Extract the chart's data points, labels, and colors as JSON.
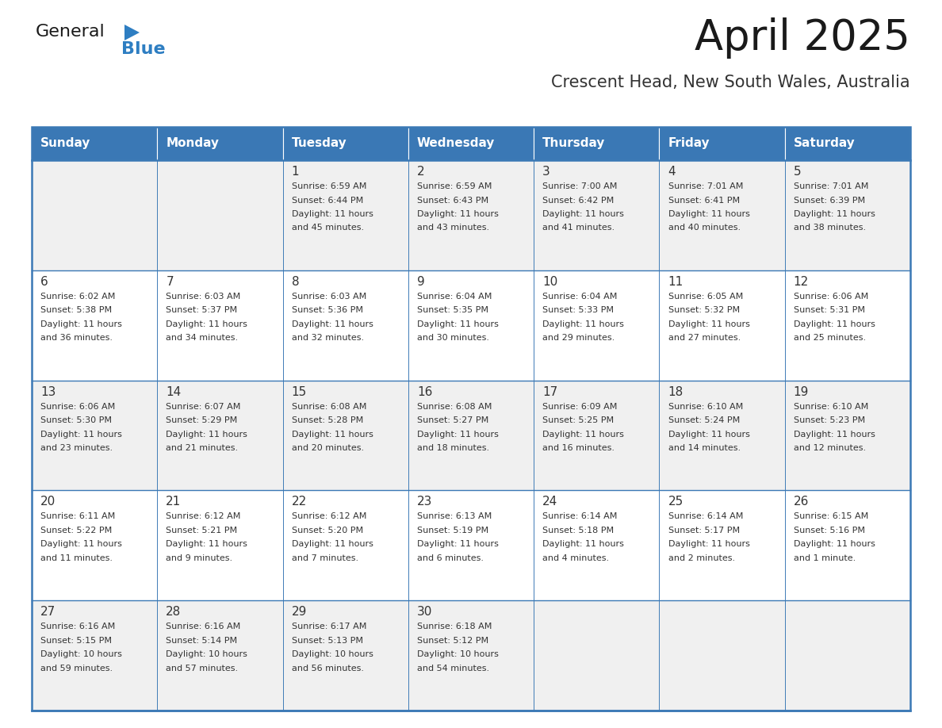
{
  "title": "April 2025",
  "subtitle": "Crescent Head, New South Wales, Australia",
  "days_of_week": [
    "Sunday",
    "Monday",
    "Tuesday",
    "Wednesday",
    "Thursday",
    "Friday",
    "Saturday"
  ],
  "header_bg": "#3a78b5",
  "header_text": "#ffffff",
  "cell_bg_light": "#f0f0f0",
  "cell_bg_white": "#ffffff",
  "border_color": "#3a78b5",
  "text_color": "#333333",
  "title_color": "#1a1a1a",
  "subtitle_color": "#333333",
  "calendar_data": [
    [
      {
        "day": "",
        "lines": []
      },
      {
        "day": "",
        "lines": []
      },
      {
        "day": "1",
        "lines": [
          "Sunrise: 6:59 AM",
          "Sunset: 6:44 PM",
          "Daylight: 11 hours",
          "and 45 minutes."
        ]
      },
      {
        "day": "2",
        "lines": [
          "Sunrise: 6:59 AM",
          "Sunset: 6:43 PM",
          "Daylight: 11 hours",
          "and 43 minutes."
        ]
      },
      {
        "day": "3",
        "lines": [
          "Sunrise: 7:00 AM",
          "Sunset: 6:42 PM",
          "Daylight: 11 hours",
          "and 41 minutes."
        ]
      },
      {
        "day": "4",
        "lines": [
          "Sunrise: 7:01 AM",
          "Sunset: 6:41 PM",
          "Daylight: 11 hours",
          "and 40 minutes."
        ]
      },
      {
        "day": "5",
        "lines": [
          "Sunrise: 7:01 AM",
          "Sunset: 6:39 PM",
          "Daylight: 11 hours",
          "and 38 minutes."
        ]
      }
    ],
    [
      {
        "day": "6",
        "lines": [
          "Sunrise: 6:02 AM",
          "Sunset: 5:38 PM",
          "Daylight: 11 hours",
          "and 36 minutes."
        ]
      },
      {
        "day": "7",
        "lines": [
          "Sunrise: 6:03 AM",
          "Sunset: 5:37 PM",
          "Daylight: 11 hours",
          "and 34 minutes."
        ]
      },
      {
        "day": "8",
        "lines": [
          "Sunrise: 6:03 AM",
          "Sunset: 5:36 PM",
          "Daylight: 11 hours",
          "and 32 minutes."
        ]
      },
      {
        "day": "9",
        "lines": [
          "Sunrise: 6:04 AM",
          "Sunset: 5:35 PM",
          "Daylight: 11 hours",
          "and 30 minutes."
        ]
      },
      {
        "day": "10",
        "lines": [
          "Sunrise: 6:04 AM",
          "Sunset: 5:33 PM",
          "Daylight: 11 hours",
          "and 29 minutes."
        ]
      },
      {
        "day": "11",
        "lines": [
          "Sunrise: 6:05 AM",
          "Sunset: 5:32 PM",
          "Daylight: 11 hours",
          "and 27 minutes."
        ]
      },
      {
        "day": "12",
        "lines": [
          "Sunrise: 6:06 AM",
          "Sunset: 5:31 PM",
          "Daylight: 11 hours",
          "and 25 minutes."
        ]
      }
    ],
    [
      {
        "day": "13",
        "lines": [
          "Sunrise: 6:06 AM",
          "Sunset: 5:30 PM",
          "Daylight: 11 hours",
          "and 23 minutes."
        ]
      },
      {
        "day": "14",
        "lines": [
          "Sunrise: 6:07 AM",
          "Sunset: 5:29 PM",
          "Daylight: 11 hours",
          "and 21 minutes."
        ]
      },
      {
        "day": "15",
        "lines": [
          "Sunrise: 6:08 AM",
          "Sunset: 5:28 PM",
          "Daylight: 11 hours",
          "and 20 minutes."
        ]
      },
      {
        "day": "16",
        "lines": [
          "Sunrise: 6:08 AM",
          "Sunset: 5:27 PM",
          "Daylight: 11 hours",
          "and 18 minutes."
        ]
      },
      {
        "day": "17",
        "lines": [
          "Sunrise: 6:09 AM",
          "Sunset: 5:25 PM",
          "Daylight: 11 hours",
          "and 16 minutes."
        ]
      },
      {
        "day": "18",
        "lines": [
          "Sunrise: 6:10 AM",
          "Sunset: 5:24 PM",
          "Daylight: 11 hours",
          "and 14 minutes."
        ]
      },
      {
        "day": "19",
        "lines": [
          "Sunrise: 6:10 AM",
          "Sunset: 5:23 PM",
          "Daylight: 11 hours",
          "and 12 minutes."
        ]
      }
    ],
    [
      {
        "day": "20",
        "lines": [
          "Sunrise: 6:11 AM",
          "Sunset: 5:22 PM",
          "Daylight: 11 hours",
          "and 11 minutes."
        ]
      },
      {
        "day": "21",
        "lines": [
          "Sunrise: 6:12 AM",
          "Sunset: 5:21 PM",
          "Daylight: 11 hours",
          "and 9 minutes."
        ]
      },
      {
        "day": "22",
        "lines": [
          "Sunrise: 6:12 AM",
          "Sunset: 5:20 PM",
          "Daylight: 11 hours",
          "and 7 minutes."
        ]
      },
      {
        "day": "23",
        "lines": [
          "Sunrise: 6:13 AM",
          "Sunset: 5:19 PM",
          "Daylight: 11 hours",
          "and 6 minutes."
        ]
      },
      {
        "day": "24",
        "lines": [
          "Sunrise: 6:14 AM",
          "Sunset: 5:18 PM",
          "Daylight: 11 hours",
          "and 4 minutes."
        ]
      },
      {
        "day": "25",
        "lines": [
          "Sunrise: 6:14 AM",
          "Sunset: 5:17 PM",
          "Daylight: 11 hours",
          "and 2 minutes."
        ]
      },
      {
        "day": "26",
        "lines": [
          "Sunrise: 6:15 AM",
          "Sunset: 5:16 PM",
          "Daylight: 11 hours",
          "and 1 minute."
        ]
      }
    ],
    [
      {
        "day": "27",
        "lines": [
          "Sunrise: 6:16 AM",
          "Sunset: 5:15 PM",
          "Daylight: 10 hours",
          "and 59 minutes."
        ]
      },
      {
        "day": "28",
        "lines": [
          "Sunrise: 6:16 AM",
          "Sunset: 5:14 PM",
          "Daylight: 10 hours",
          "and 57 minutes."
        ]
      },
      {
        "day": "29",
        "lines": [
          "Sunrise: 6:17 AM",
          "Sunset: 5:13 PM",
          "Daylight: 10 hours",
          "and 56 minutes."
        ]
      },
      {
        "day": "30",
        "lines": [
          "Sunrise: 6:18 AM",
          "Sunset: 5:12 PM",
          "Daylight: 10 hours",
          "and 54 minutes."
        ]
      },
      {
        "day": "",
        "lines": []
      },
      {
        "day": "",
        "lines": []
      },
      {
        "day": "",
        "lines": []
      }
    ]
  ],
  "logo_general_color": "#1a1a1a",
  "logo_blue_color": "#2e7ec2",
  "logo_triangle_color": "#2e7ec2"
}
